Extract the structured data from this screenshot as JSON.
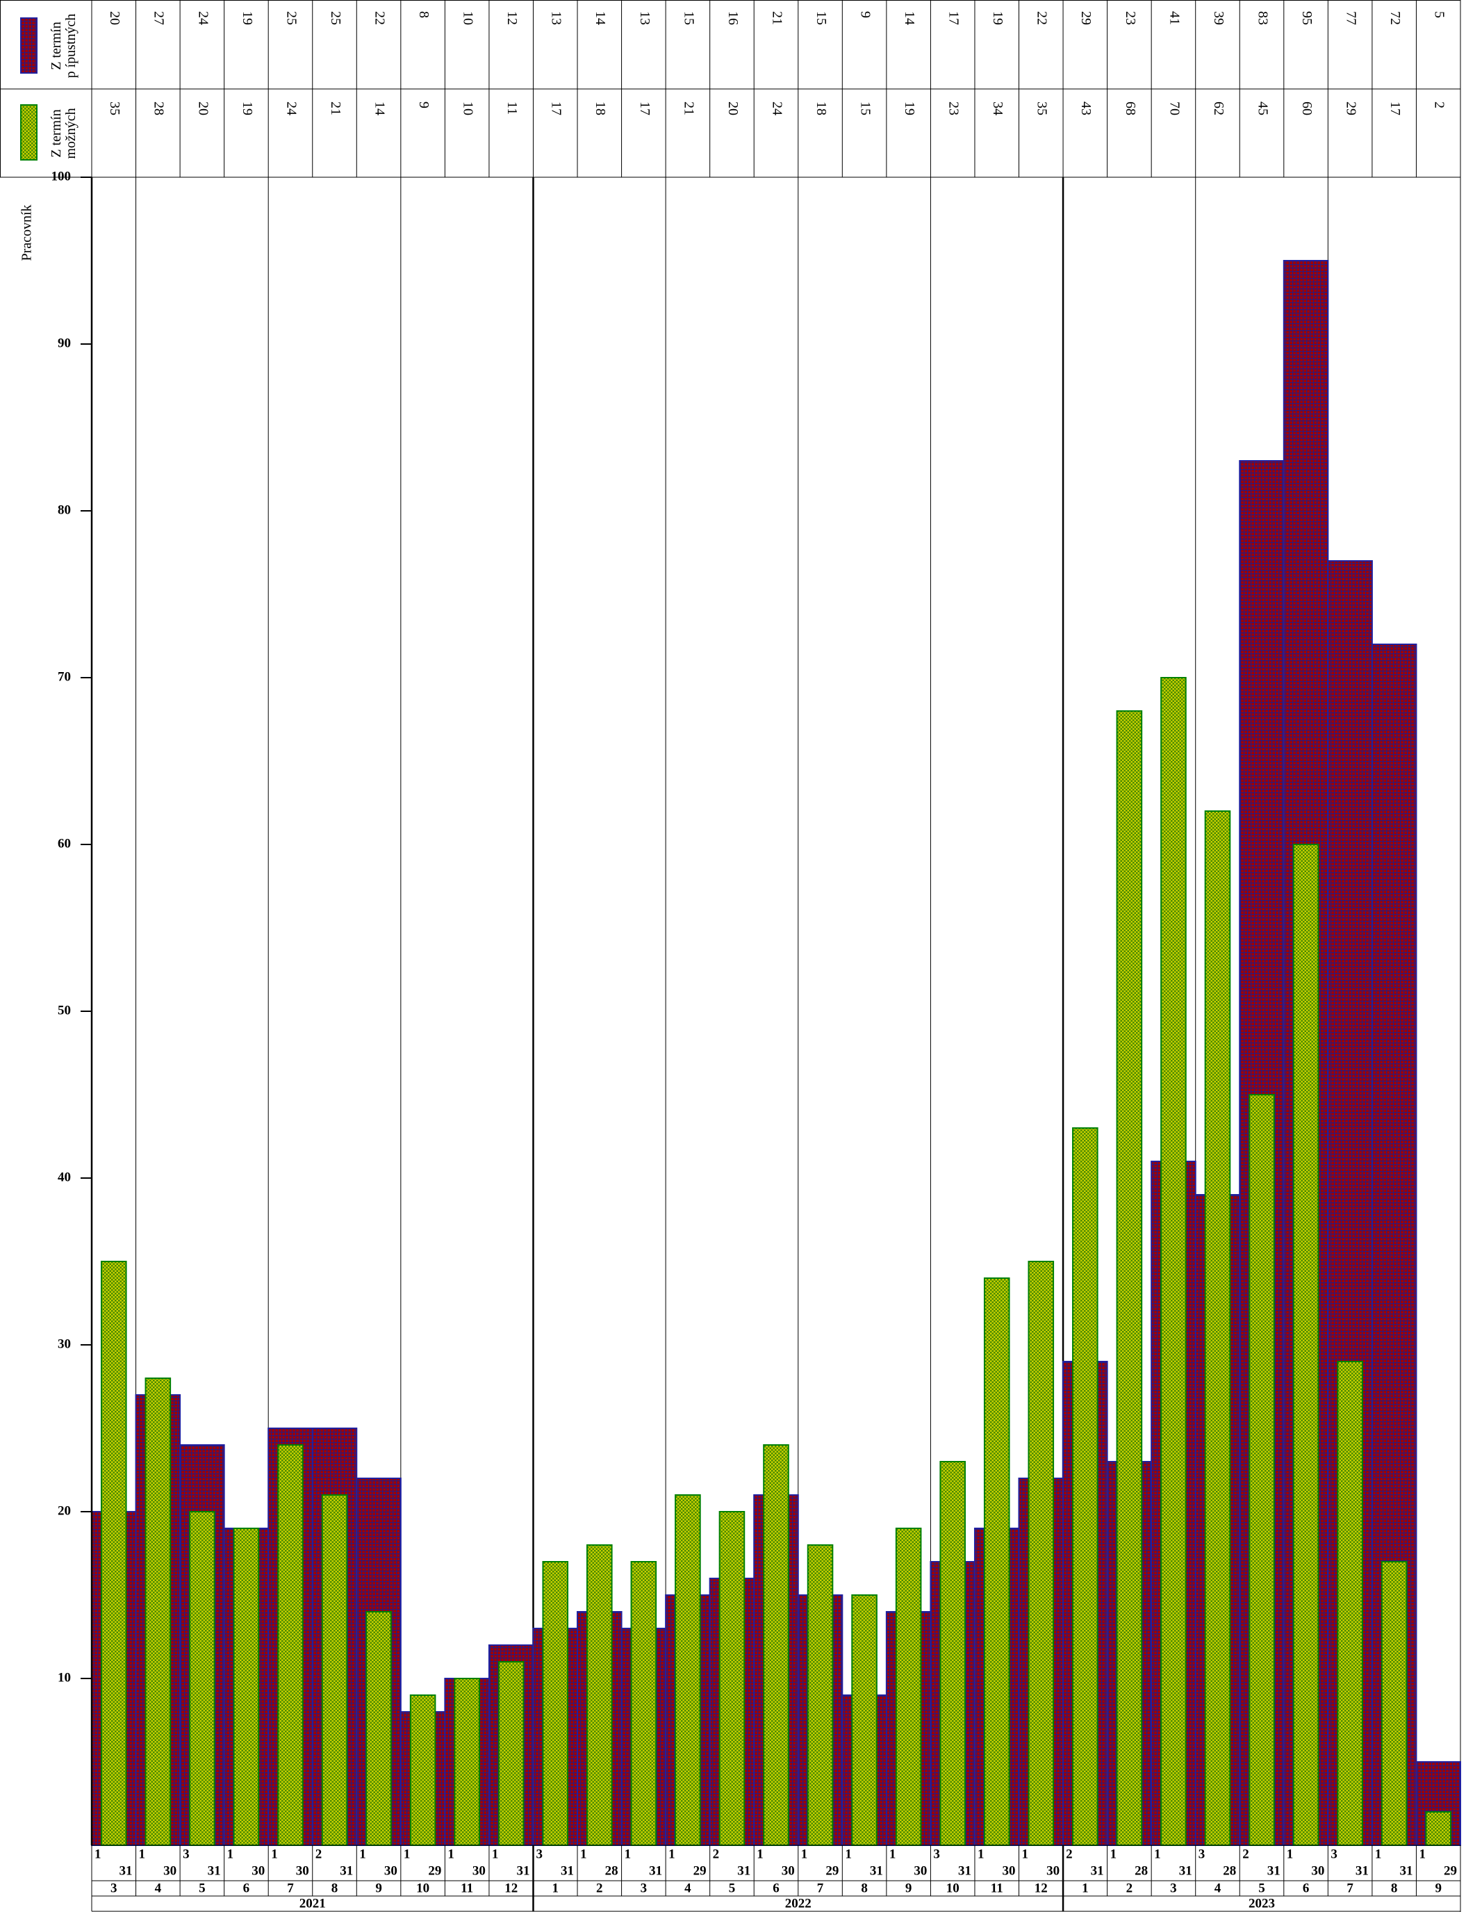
{
  "chart_data": {
    "type": "bar",
    "y_label": "Pracovník",
    "categories": [
      "3",
      "4",
      "5",
      "6",
      "7",
      "8",
      "9",
      "10",
      "11",
      "12",
      "1",
      "2",
      "3",
      "4",
      "5",
      "6",
      "7",
      "8",
      "9",
      "10",
      "11",
      "12",
      "1",
      "2",
      "3",
      "4",
      "5",
      "6",
      "7",
      "8",
      "9"
    ],
    "years": [
      "2021",
      "2022",
      "2023"
    ],
    "start_days": [
      "1",
      "1",
      "3",
      "1",
      "1",
      "2",
      "1",
      "1",
      "1",
      "1",
      "3",
      "1",
      "1",
      "1",
      "2",
      "1",
      "1",
      "1",
      "1",
      "3",
      "1",
      "1",
      "2",
      "1",
      "1",
      "3",
      "2",
      "1",
      "3",
      "1",
      "1"
    ],
    "end_days": [
      "31",
      "30",
      "31",
      "30",
      "30",
      "31",
      "30",
      "29",
      "30",
      "31",
      "31",
      "28",
      "31",
      "29",
      "31",
      "30",
      "29",
      "31",
      "30",
      "31",
      "30",
      "30",
      "31",
      "28",
      "31",
      "28",
      "31",
      "30",
      "31",
      "31",
      "29"
    ],
    "series": [
      {
        "name": "Z termín\np ípustných",
        "color": "#a00000",
        "values": [
          20,
          27,
          24,
          19,
          25,
          25,
          22,
          8,
          10,
          12,
          13,
          14,
          13,
          15,
          16,
          21,
          15,
          9,
          14,
          17,
          19,
          22,
          29,
          23,
          41,
          39,
          83,
          95,
          77,
          72,
          5
        ]
      },
      {
        "name": "Z termín\nmožných",
        "color": "#c8d000",
        "values": [
          35,
          28,
          20,
          19,
          24,
          21,
          14,
          9,
          10,
          11,
          17,
          18,
          17,
          21,
          20,
          24,
          18,
          15,
          19,
          23,
          34,
          35,
          43,
          68,
          70,
          62,
          45,
          60,
          29,
          17,
          2
        ]
      }
    ],
    "ylim": [
      0,
      100
    ],
    "yticks": [
      10,
      20,
      30,
      40,
      50,
      60,
      70,
      80,
      90,
      100
    ]
  }
}
